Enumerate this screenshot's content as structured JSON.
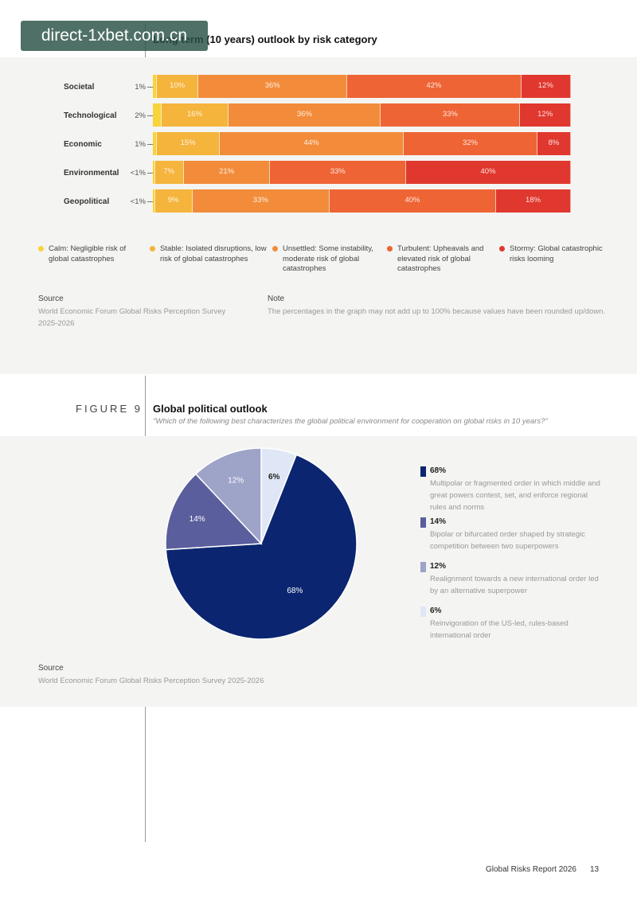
{
  "watermark": "direct-1xbet.com.cn",
  "figure8": {
    "title": "Long term (10 years) outlook by risk category",
    "source_heading": "Source",
    "source_text": "World Economic Forum Global Risks Perception Survey 2025-2026",
    "note_heading": "Note",
    "note_text": "The percentages in the graph may not add up to 100% because values have been rounded up/down.",
    "colors": [
      "#f6d43a",
      "#f5b43c",
      "#f28c3a",
      "#ee6434",
      "#e0382e"
    ],
    "legend": [
      "Calm: Negligible risk of global catastrophes",
      "Stable: Isolated disruptions, low risk of global catastrophes",
      "Unsettled: Some instability, moderate risk of global catastrophes",
      "Turbulent: Upheavals and elevated risk of global catastrophes",
      "Stormy: Global catastrophic risks looming"
    ]
  },
  "figure9": {
    "label": "FIGURE 9",
    "title": "Global political outlook",
    "subtitle": "\"Which of the following best characterizes the global political environment for cooperation on global risks in 10 years?\"",
    "source_heading": "Source",
    "source_text": "World Economic Forum Global Risks Perception Survey 2025-2026",
    "legend": [
      {
        "pct": "68%",
        "desc": "Multipolar or fragmented order in which middle and great powers contest, set, and enforce regional rules and norms"
      },
      {
        "pct": "14%",
        "desc": "Bipolar or bifurcated order shaped by strategic competition between two superpowers"
      },
      {
        "pct": "12%",
        "desc": "Realignment towards a new international order led by an alternative superpower"
      },
      {
        "pct": "6%",
        "desc": "Reinvigoration of the US-led, rules-based international order"
      }
    ]
  },
  "footer": {
    "report": "Global Risks Report 2026",
    "page": "13"
  },
  "chart_data": [
    {
      "type": "bar",
      "stacked": true,
      "orientation": "horizontal",
      "title": "Long term (10 years) outlook by risk category",
      "categories": [
        "Societal",
        "Technological",
        "Economic",
        "Environmental",
        "Geopolitical"
      ],
      "series": [
        {
          "name": "Calm",
          "values": [
            1,
            2,
            1,
            0.5,
            0.5
          ],
          "labels": [
            "1%",
            "2%",
            "1%",
            "<1%",
            "<1%"
          ]
        },
        {
          "name": "Stable",
          "values": [
            10,
            16,
            15,
            7,
            9
          ],
          "labels": [
            "10%",
            "16%",
            "15%",
            "7%",
            "9%"
          ]
        },
        {
          "name": "Unsettled",
          "values": [
            36,
            36,
            44,
            21,
            33
          ],
          "labels": [
            "36%",
            "36%",
            "44%",
            "21%",
            "33%"
          ]
        },
        {
          "name": "Turbulent",
          "values": [
            42,
            33,
            32,
            33,
            40
          ],
          "labels": [
            "42%",
            "33%",
            "32%",
            "33%",
            "40%"
          ]
        },
        {
          "name": "Stormy",
          "values": [
            12,
            12,
            8,
            40,
            18
          ],
          "labels": [
            "12%",
            "12%",
            "8%",
            "40%",
            "18%"
          ]
        }
      ],
      "legend_position": "bottom"
    },
    {
      "type": "pie",
      "title": "Global political outlook",
      "slices": [
        {
          "value": 68,
          "label": "68%",
          "color": "#0b2570"
        },
        {
          "value": 14,
          "label": "14%",
          "color": "#5b5e9c"
        },
        {
          "value": 12,
          "label": "12%",
          "color": "#9ea3c8"
        },
        {
          "value": 6,
          "label": "6%",
          "color": "#dfe6f5"
        }
      ],
      "legend_position": "right"
    }
  ]
}
